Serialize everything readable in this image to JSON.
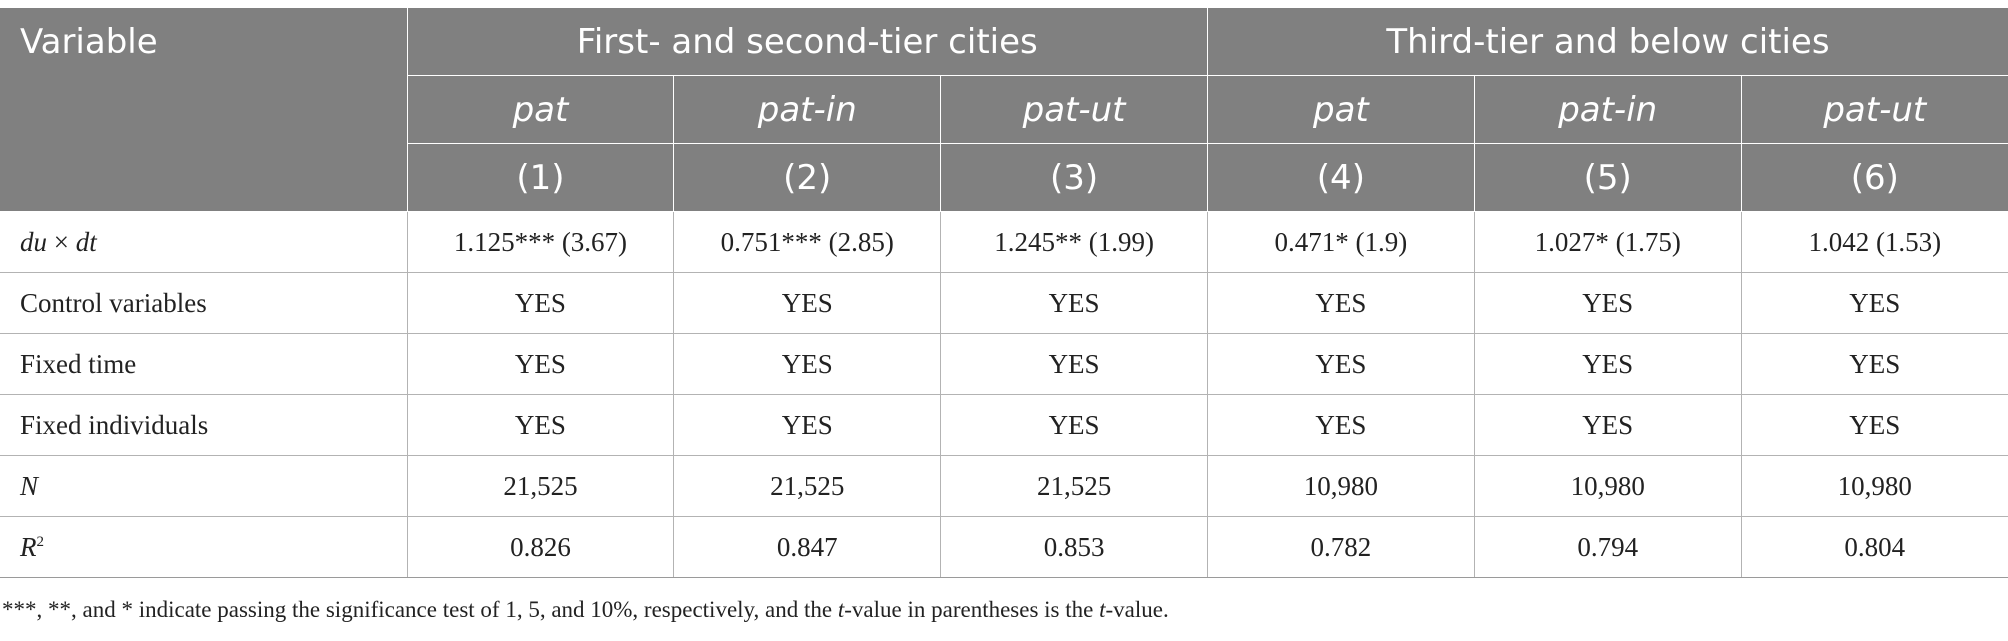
{
  "header": {
    "variable_label": "Variable",
    "groups": [
      "First- and second-tier cities",
      "Third-tier and below cities"
    ],
    "models": [
      "pat",
      "pat-in",
      "pat-ut",
      "pat",
      "pat-in",
      "pat-ut"
    ],
    "columns": [
      "(1)",
      "(2)",
      "(3)",
      "(4)",
      "(5)",
      "(6)"
    ]
  },
  "rows": [
    {
      "label_a": "du",
      "label_sep": " × ",
      "label_b": "dt",
      "cells": [
        "1.125*** (3.67)",
        "0.751*** (2.85)",
        "1.245** (1.99)",
        "0.471* (1.9)",
        "1.027* (1.75)",
        "1.042 (1.53)"
      ]
    },
    {
      "label": "Control variables",
      "cells": [
        "YES",
        "YES",
        "YES",
        "YES",
        "YES",
        "YES"
      ]
    },
    {
      "label": "Fixed time",
      "cells": [
        "YES",
        "YES",
        "YES",
        "YES",
        "YES",
        "YES"
      ]
    },
    {
      "label": "Fixed individuals",
      "cells": [
        "YES",
        "YES",
        "YES",
        "YES",
        "YES",
        "YES"
      ]
    },
    {
      "label": "N",
      "cells": [
        "21,525",
        "21,525",
        "21,525",
        "10,980",
        "10,980",
        "10,980"
      ]
    },
    {
      "label": "R",
      "label_sup": "2",
      "cells": [
        "0.826",
        "0.847",
        "0.853",
        "0.782",
        "0.794",
        "0.804"
      ]
    }
  ],
  "footnote": {
    "part1": "***, **, and * indicate passing the significance test of 1, 5, and 10%, respectively, and the ",
    "t1": "t",
    "part2": "-value in parentheses is the ",
    "t2": "t",
    "part3": "-value."
  }
}
